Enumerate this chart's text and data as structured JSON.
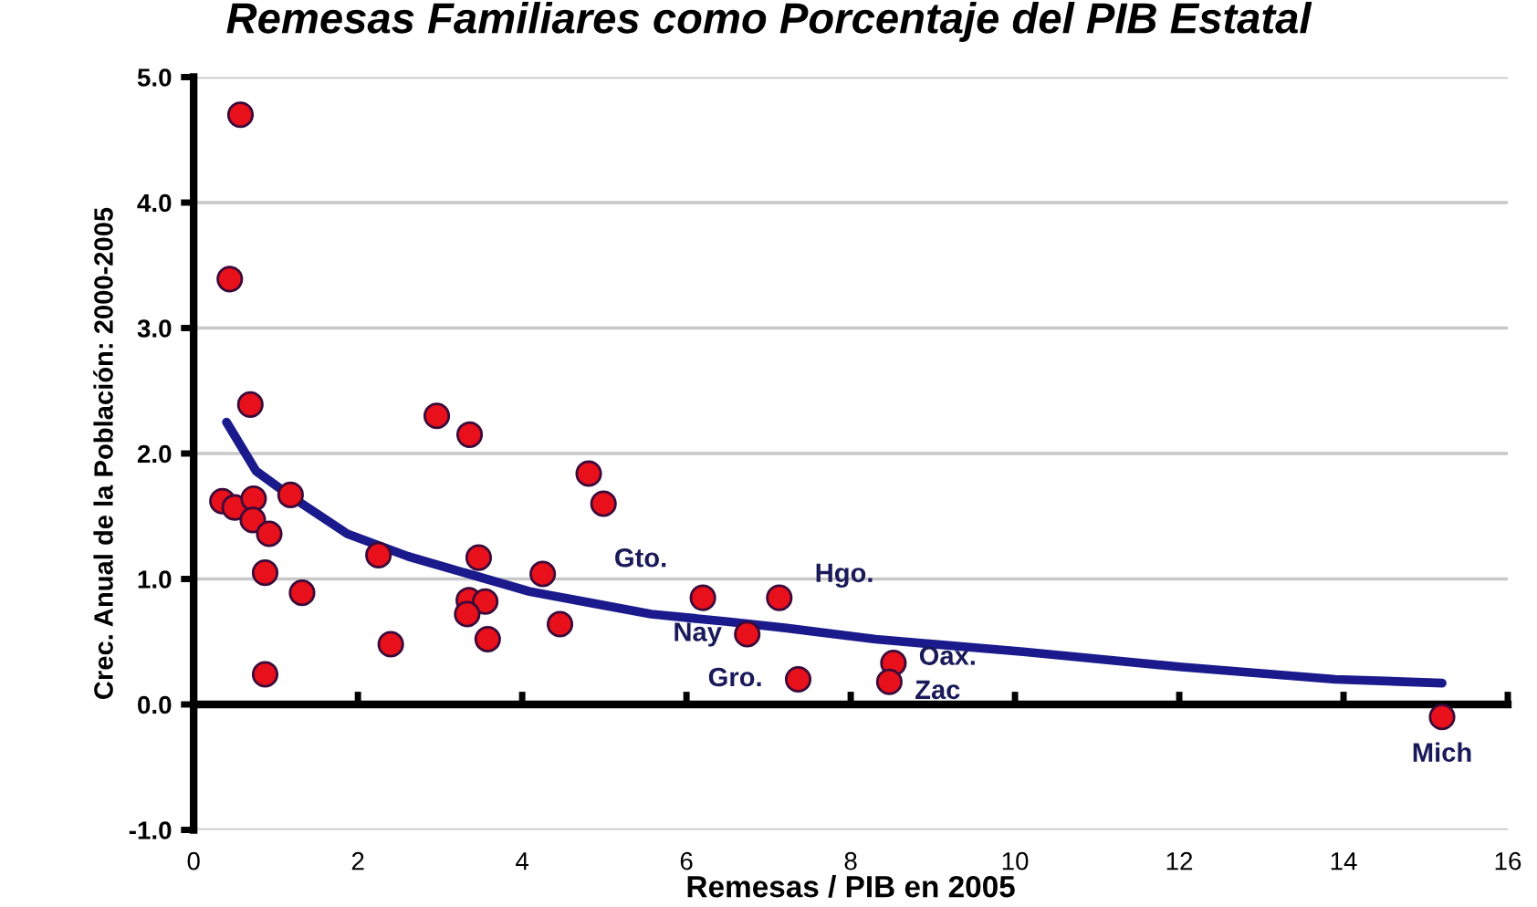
{
  "chart_data": {
    "type": "scatter",
    "title": "Remesas Familiares como Porcentaje del PIB Estatal",
    "xlabel": "Remesas / PIB en 2005",
    "ylabel": "Crec. Anual de la Población: 2000-2005",
    "series": [
      {
        "marker": "circle",
        "color": "#e8101a",
        "x": [
          0.57,
          0.44,
          0.69,
          2.96,
          3.36,
          4.81,
          4.99,
          0.35,
          0.5,
          0.73,
          1.18,
          0.72,
          0.92,
          0.87,
          1.32,
          2.25,
          2.4,
          0.87,
          3.47,
          3.35,
          3.55,
          3.33,
          3.58,
          4.25,
          4.46,
          6.2,
          7.13,
          6.74,
          7.36,
          8.52,
          8.47,
          15.2
        ],
        "values": [
          4.7,
          3.39,
          2.39,
          2.3,
          2.15,
          1.84,
          1.6,
          1.62,
          1.57,
          1.64,
          1.67,
          1.47,
          1.36,
          1.05,
          0.89,
          1.19,
          0.48,
          0.24,
          1.17,
          0.83,
          0.82,
          0.72,
          0.52,
          1.04,
          0.64,
          0.85,
          0.85,
          0.56,
          0.2,
          0.33,
          0.18,
          -0.1
        ]
      },
      {
        "type": "line",
        "color": "#1a1a8c",
        "x": [
          0.4,
          0.76,
          1.18,
          1.87,
          2.61,
          3.35,
          4.09,
          4.83,
          5.57,
          6.5,
          7.2,
          8.3,
          10.1,
          12.0,
          13.9,
          15.2
        ],
        "values": [
          2.25,
          1.86,
          1.66,
          1.36,
          1.18,
          1.04,
          0.9,
          0.81,
          0.72,
          0.66,
          0.61,
          0.52,
          0.42,
          0.3,
          0.2,
          0.17
        ]
      }
    ],
    "annotations": [
      {
        "text": "Gto.",
        "x": 6.2,
        "y": 0.85
      },
      {
        "text": "Hgo.",
        "x": 7.13,
        "y": 0.85
      },
      {
        "text": "Nay",
        "x": 6.74,
        "y": 0.56
      },
      {
        "text": "Gro.",
        "x": 7.36,
        "y": 0.2
      },
      {
        "text": "Oax.",
        "x": 8.52,
        "y": 0.33
      },
      {
        "text": "Zac",
        "x": 8.47,
        "y": 0.18
      },
      {
        "text": "Mich",
        "x": 15.2,
        "y": -0.1
      }
    ],
    "xlim": [
      0,
      16
    ],
    "xticks": [
      0,
      2,
      4,
      6,
      8,
      10,
      12,
      14,
      16
    ],
    "ylim": [
      -1,
      5
    ],
    "yticks": [
      {
        "value": -1,
        "label": "-1.0"
      },
      {
        "value": 0,
        "label": "0.0"
      },
      {
        "value": 1,
        "label": "1.0"
      },
      {
        "value": 2,
        "label": "2.0"
      },
      {
        "value": 3,
        "label": "3.0"
      },
      {
        "value": 4,
        "label": "4.0"
      },
      {
        "value": 5,
        "label": "5.0"
      }
    ],
    "grid": "y",
    "legend": false
  }
}
